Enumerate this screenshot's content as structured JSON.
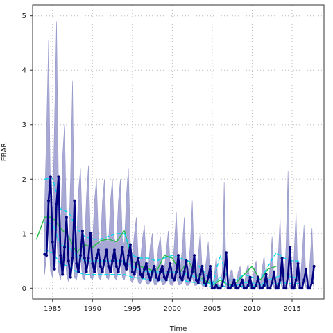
{
  "chart_data": {
    "type": "line",
    "xlabel": "Time",
    "ylabel": "FBAR",
    "xlim": [
      1982.5,
      2019.0
    ],
    "ylim": [
      -0.2,
      5.2
    ],
    "x_ticks": [
      1985,
      1990,
      1995,
      2000,
      2005,
      2010,
      2015
    ],
    "y_ticks": [
      0,
      1,
      2,
      3,
      4,
      5
    ],
    "grid": true,
    "colors": {
      "band": "#9999cc",
      "main": "#000080",
      "cyan": "#00d8ee",
      "cyan_light": "#33ddee",
      "green": "#22bb44",
      "grid": "#bbbbbb"
    },
    "band": {
      "x": [
        1984.0,
        1984.25,
        1984.5,
        1984.75,
        1985.0,
        1985.25,
        1985.5,
        1985.75,
        1986.0,
        1986.25,
        1986.5,
        1986.75,
        1987.0,
        1987.25,
        1987.5,
        1987.75,
        1988.0,
        1988.25,
        1988.5,
        1988.75,
        1989.0,
        1989.25,
        1989.5,
        1989.75,
        1990.0,
        1990.25,
        1990.5,
        1990.75,
        1991.0,
        1991.25,
        1991.5,
        1991.75,
        1992.0,
        1992.25,
        1992.5,
        1992.75,
        1993.0,
        1993.25,
        1993.5,
        1993.75,
        1994.0,
        1994.25,
        1994.5,
        1994.75,
        1995.0,
        1995.25,
        1995.5,
        1995.75,
        1996.0,
        1996.25,
        1996.5,
        1996.75,
        1997.0,
        1997.25,
        1997.5,
        1997.75,
        1998.0,
        1998.25,
        1998.5,
        1998.75,
        1999.0,
        1999.25,
        1999.5,
        1999.75,
        2000.0,
        2000.25,
        2000.5,
        2000.75,
        2001.0,
        2001.25,
        2001.5,
        2001.75,
        2002.0,
        2002.25,
        2002.5,
        2002.75,
        2003.0,
        2003.25,
        2003.5,
        2003.75,
        2004.0,
        2004.25,
        2004.5,
        2004.75,
        2005.0,
        2005.25,
        2005.5,
        2005.75,
        2006.0,
        2006.25,
        2006.5,
        2006.75,
        2007.0,
        2007.25,
        2007.5,
        2007.75,
        2008.0,
        2008.25,
        2008.5,
        2008.75,
        2009.0,
        2009.25,
        2009.5,
        2009.75,
        2010.0,
        2010.25,
        2010.5,
        2010.75,
        2011.0,
        2011.25,
        2011.5,
        2011.75,
        2012.0,
        2012.25,
        2012.5,
        2012.75,
        2013.0,
        2013.25,
        2013.5,
        2013.75,
        2014.0,
        2014.25,
        2014.5,
        2014.75,
        2015.0,
        2015.25,
        2015.5,
        2015.75,
        2016.0,
        2016.25,
        2016.5,
        2016.75,
        2017.0,
        2017.25,
        2017.5,
        2017.75
      ],
      "lower": [
        0.25,
        0.6,
        1.05,
        0.3,
        0.2,
        0.55,
        1.0,
        0.3,
        0.15,
        0.45,
        0.8,
        0.25,
        0.12,
        0.4,
        0.85,
        0.2,
        0.15,
        0.4,
        0.55,
        0.2,
        0.15,
        0.35,
        0.5,
        0.2,
        0.15,
        0.3,
        0.45,
        0.2,
        0.15,
        0.3,
        0.45,
        0.2,
        0.15,
        0.3,
        0.45,
        0.2,
        0.15,
        0.3,
        0.45,
        0.2,
        0.15,
        0.35,
        0.45,
        0.15,
        0.1,
        0.2,
        0.3,
        0.1,
        0.08,
        0.15,
        0.25,
        0.08,
        0.06,
        0.12,
        0.2,
        0.06,
        0.06,
        0.12,
        0.18,
        0.06,
        0.06,
        0.12,
        0.2,
        0.06,
        0.06,
        0.12,
        0.22,
        0.06,
        0.06,
        0.1,
        0.18,
        0.05,
        0.05,
        0.1,
        0.2,
        0.05,
        0.05,
        0.08,
        0.15,
        0.04,
        0.03,
        0.06,
        0.12,
        0.03,
        0.0,
        0.0,
        0.02,
        0.0,
        0.0,
        0.02,
        0.2,
        0.0,
        0.0,
        0.02,
        0.05,
        0.0,
        0.0,
        0.02,
        0.05,
        0.0,
        0.0,
        0.02,
        0.06,
        0.0,
        0.0,
        0.02,
        0.06,
        0.0,
        0.0,
        0.02,
        0.08,
        0.0,
        0.0,
        0.03,
        0.1,
        0.0,
        0.0,
        0.04,
        0.15,
        0.0,
        0.0,
        0.05,
        0.2,
        0.0,
        0.0,
        0.04,
        0.15,
        0.0,
        0.0,
        0.04,
        0.15,
        0.0,
        0.0,
        0.04,
        0.15,
        0.0
      ],
      "upper": [
        1.5,
        2.9,
        4.55,
        1.6,
        1.2,
        3.1,
        4.9,
        1.8,
        1.0,
        2.4,
        3.0,
        1.1,
        0.8,
        2.0,
        3.8,
        0.9,
        0.8,
        1.8,
        2.2,
        0.9,
        0.8,
        1.7,
        2.25,
        0.9,
        0.8,
        1.6,
        2.0,
        0.9,
        0.8,
        1.6,
        2.0,
        0.9,
        0.8,
        1.6,
        2.0,
        0.9,
        0.8,
        1.6,
        2.0,
        0.9,
        0.8,
        1.7,
        2.2,
        0.8,
        0.6,
        1.0,
        1.3,
        0.5,
        0.5,
        0.9,
        1.15,
        0.45,
        0.4,
        0.8,
        1.0,
        0.4,
        0.35,
        0.75,
        0.95,
        0.4,
        0.35,
        0.7,
        1.05,
        0.4,
        0.35,
        0.8,
        1.4,
        0.45,
        0.35,
        0.75,
        1.3,
        0.4,
        0.35,
        0.8,
        1.6,
        0.4,
        0.3,
        0.6,
        1.05,
        0.3,
        0.25,
        0.5,
        0.85,
        0.2,
        0.05,
        0.2,
        0.6,
        0.05,
        0.05,
        0.3,
        1.95,
        0.1,
        0.05,
        0.3,
        0.35,
        0.05,
        0.05,
        0.3,
        0.4,
        0.05,
        0.05,
        0.3,
        0.45,
        0.05,
        0.05,
        0.35,
        0.5,
        0.05,
        0.05,
        0.35,
        0.6,
        0.05,
        0.05,
        0.4,
        0.95,
        0.05,
        0.05,
        0.55,
        1.3,
        0.05,
        0.05,
        0.8,
        2.15,
        0.05,
        0.05,
        0.6,
        1.4,
        0.05,
        0.05,
        0.6,
        1.15,
        0.05,
        0.05,
        0.5,
        1.1,
        0.05
      ]
    },
    "series": [
      {
        "style": "thick-line-points",
        "color": "#000080",
        "x": [
          1984.0,
          1984.25,
          1984.5,
          1984.75,
          1985.0,
          1985.25,
          1985.5,
          1985.75,
          1986.0,
          1986.25,
          1986.5,
          1986.75,
          1987.0,
          1987.25,
          1987.5,
          1987.75,
          1988.0,
          1988.25,
          1988.5,
          1988.75,
          1989.0,
          1989.25,
          1989.5,
          1989.75,
          1990.0,
          1990.25,
          1990.5,
          1990.75,
          1991.0,
          1991.25,
          1991.5,
          1991.75,
          1992.0,
          1992.25,
          1992.5,
          1992.75,
          1993.0,
          1993.25,
          1993.5,
          1993.75,
          1994.0,
          1994.25,
          1994.5,
          1994.75,
          1995.0,
          1995.25,
          1995.5,
          1995.75,
          1996.0,
          1996.25,
          1996.5,
          1996.75,
          1997.0,
          1997.25,
          1997.5,
          1997.75,
          1998.0,
          1998.25,
          1998.5,
          1998.75,
          1999.0,
          1999.25,
          1999.5,
          1999.75,
          2000.0,
          2000.25,
          2000.5,
          2000.75,
          2001.0,
          2001.25,
          2001.5,
          2001.75,
          2002.0,
          2002.25,
          2002.5,
          2002.75,
          2003.0,
          2003.25,
          2003.5,
          2003.75,
          2004.0,
          2004.25,
          2004.5,
          2004.75,
          2005.0,
          2005.25,
          2005.5,
          2005.75,
          2006.0,
          2006.25,
          2006.5,
          2006.75,
          2007.0,
          2007.25,
          2007.5,
          2007.75,
          2008.0,
          2008.25,
          2008.5,
          2008.75,
          2009.0,
          2009.25,
          2009.5,
          2009.75,
          2010.0,
          2010.25,
          2010.5,
          2010.75,
          2011.0,
          2011.25,
          2011.5,
          2011.75,
          2012.0,
          2012.25,
          2012.5,
          2012.75,
          2013.0,
          2013.25,
          2013.5,
          2013.75,
          2014.0,
          2014.25,
          2014.5,
          2014.75,
          2015.0,
          2015.25,
          2015.5,
          2015.75,
          2016.0,
          2016.25,
          2016.5,
          2016.75,
          2017.0,
          2017.25,
          2017.5,
          2017.75
        ],
        "y": [
          0.62,
          0.6,
          1.6,
          2.05,
          0.85,
          0.35,
          1.55,
          2.05,
          0.6,
          0.25,
          0.75,
          1.3,
          0.5,
          0.2,
          0.55,
          1.6,
          0.45,
          0.3,
          0.6,
          1.05,
          0.55,
          0.3,
          0.55,
          1.0,
          0.45,
          0.3,
          0.55,
          0.7,
          0.4,
          0.3,
          0.5,
          0.7,
          0.4,
          0.3,
          0.5,
          0.7,
          0.4,
          0.3,
          0.5,
          0.75,
          0.45,
          0.35,
          0.6,
          0.8,
          0.3,
          0.25,
          0.45,
          0.55,
          0.25,
          0.2,
          0.35,
          0.45,
          0.25,
          0.15,
          0.3,
          0.4,
          0.2,
          0.15,
          0.3,
          0.4,
          0.2,
          0.15,
          0.3,
          0.45,
          0.2,
          0.15,
          0.3,
          0.6,
          0.2,
          0.15,
          0.3,
          0.5,
          0.2,
          0.15,
          0.3,
          0.6,
          0.15,
          0.1,
          0.25,
          0.4,
          0.1,
          0.05,
          0.2,
          0.4,
          0.0,
          0.0,
          0.05,
          0.0,
          0.0,
          0.05,
          0.25,
          0.65,
          0.0,
          0.0,
          0.05,
          0.15,
          0.0,
          0.0,
          0.05,
          0.15,
          0.0,
          0.0,
          0.05,
          0.2,
          0.0,
          0.0,
          0.05,
          0.2,
          0.0,
          0.0,
          0.05,
          0.25,
          0.0,
          0.0,
          0.1,
          0.3,
          0.0,
          0.0,
          0.15,
          0.55,
          0.0,
          0.0,
          0.25,
          0.75,
          0.0,
          0.0,
          0.15,
          0.45,
          0.0,
          0.0,
          0.15,
          0.35,
          0.0,
          0.0,
          0.1,
          0.4
        ]
      },
      {
        "style": "solid",
        "color": "#22bb44",
        "x": [
          1983.0,
          1984.0,
          1985.0,
          1986.0,
          1987.0,
          1988.0,
          1989.0,
          1990.0,
          1991.0,
          1992.0,
          1993.0,
          1994.0,
          1995.0,
          1996.0,
          1997.0,
          1998.0,
          1999.0,
          2000.0,
          2001.0,
          2002.0,
          2003.0,
          2004.0,
          2005.0,
          2006.0,
          2007.0,
          2008.0,
          2009.0,
          2010.0,
          2011.0,
          2012.0,
          2013.0
        ],
        "y": [
          0.9,
          1.3,
          1.3,
          1.1,
          0.95,
          0.65,
          0.8,
          0.75,
          0.87,
          0.9,
          0.85,
          1.05,
          0.5,
          0.4,
          0.35,
          0.3,
          0.6,
          0.55,
          0.3,
          0.5,
          0.25,
          0.15,
          0.05,
          0.15,
          0.05,
          0.1,
          0.25,
          0.4,
          0.15,
          0.35,
          0.4
        ]
      },
      {
        "style": "solid",
        "color": "#33ddee",
        "x": [
          1984.0,
          1985.0,
          1986.0,
          1987.0,
          1988.0,
          1989.0,
          1990.0,
          1991.0,
          1992.0,
          1993.0,
          1994.0,
          1995.0,
          1996.0,
          1997.0,
          1998.0,
          1999.0,
          2000.0,
          2001.0,
          2002.0,
          2003.0,
          2004.0,
          2005.0,
          2006.0,
          2007.0,
          2008.0,
          2009.0,
          2010.0,
          2011.0,
          2012.0,
          2013.0,
          2014.0,
          2015.0,
          2016.0
        ],
        "y": [
          1.2,
          1.18,
          0.8,
          0.75,
          0.6,
          0.5,
          0.5,
          0.5,
          0.5,
          0.5,
          0.5,
          0.4,
          0.32,
          0.3,
          0.3,
          0.28,
          0.3,
          0.28,
          0.25,
          0.2,
          0.12,
          0.05,
          0.2,
          0.05,
          0.05,
          0.1,
          0.1,
          0.05,
          0.15,
          0.2,
          0.25,
          0.2,
          0.2
        ]
      },
      {
        "style": "dashed",
        "color": "#00d8ee",
        "x": [
          1984.0,
          1985.0,
          1986.0,
          1987.0,
          1988.0,
          1989.0,
          1990.0,
          1991.0,
          1992.0,
          1993.0,
          1994.0,
          1995.0,
          1996.0,
          1997.0,
          1998.0,
          1999.0,
          2000.0,
          2001.0,
          2002.0,
          2003.0,
          2004.0,
          2005.0,
          2006.0,
          2007.0,
          2008.0,
          2009.0,
          2010.0,
          2011.0,
          2012.0,
          2013.0,
          2014.0,
          2015.0,
          2016.0
        ],
        "y": [
          2.0,
          2.02,
          1.45,
          1.4,
          1.1,
          0.95,
          0.9,
          0.9,
          0.95,
          1.0,
          1.0,
          0.6,
          0.55,
          0.55,
          0.5,
          0.55,
          0.6,
          0.55,
          0.5,
          0.45,
          0.3,
          0.05,
          0.6,
          0.15,
          0.15,
          0.25,
          0.2,
          0.15,
          0.4,
          0.65,
          0.55,
          0.5,
          0.5
        ]
      },
      {
        "style": "dashed",
        "color": "#00d8ee",
        "x": [
          1984.0,
          1985.0,
          1986.0,
          1987.0,
          1988.0,
          1989.0,
          1990.0,
          1991.0,
          1992.0,
          1993.0,
          1994.0,
          1995.0,
          1996.0,
          1997.0,
          1998.0,
          1999.0,
          2000.0,
          2001.0,
          2002.0,
          2003.0,
          2004.0,
          2005.0,
          2006.0,
          2007.0,
          2008.0,
          2009.0,
          2010.0,
          2011.0,
          2012.0,
          2013.0,
          2014.0,
          2015.0,
          2016.0
        ],
        "y": [
          0.7,
          0.65,
          0.45,
          0.4,
          0.3,
          0.25,
          0.25,
          0.25,
          0.25,
          0.25,
          0.25,
          0.2,
          0.18,
          0.16,
          0.15,
          0.15,
          0.15,
          0.15,
          0.12,
          0.1,
          0.06,
          0.02,
          0.05,
          0.02,
          0.02,
          0.04,
          0.04,
          0.02,
          0.06,
          0.08,
          0.1,
          0.08,
          0.08
        ]
      }
    ]
  }
}
